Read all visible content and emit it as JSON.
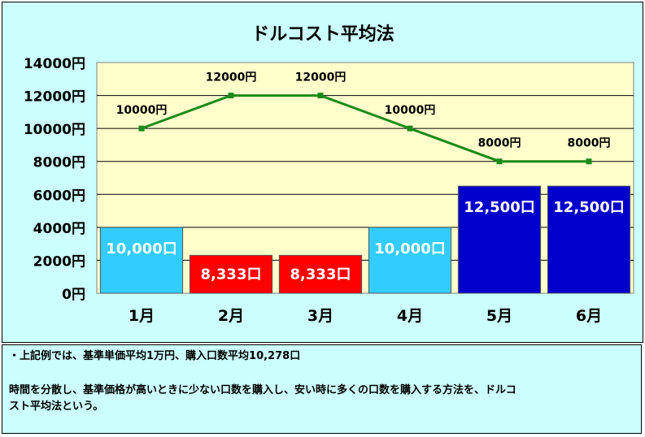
{
  "chart_data": {
    "type": "bar+line",
    "title": "ドルコスト平均法",
    "categories": [
      "1月",
      "2月",
      "3月",
      "4月",
      "5月",
      "6月"
    ],
    "ylim": [
      0,
      14000
    ],
    "y_ticks": [
      "0円",
      "2000円",
      "4000円",
      "6000円",
      "8000円",
      "10000円",
      "12000円",
      "14000円"
    ],
    "bars": {
      "values": [
        4000,
        2300,
        2300,
        4000,
        6500,
        6500
      ],
      "labels": [
        "10,000口",
        "8,333口",
        "8,333口",
        "10,000口",
        "12,500口",
        "12,500口"
      ],
      "colors": [
        "#33ccff",
        "#ff0000",
        "#ff0000",
        "#33ccff",
        "#0000cc",
        "#0000cc"
      ]
    },
    "line": {
      "values": [
        10000,
        12000,
        12000,
        10000,
        8000,
        8000
      ],
      "labels": [
        "10000円",
        "12000円",
        "12000円",
        "10000円",
        "8000円",
        "8000円"
      ],
      "color": "#1a8a1a"
    },
    "plot_background": "#ffffcc",
    "grid": true
  },
  "note": {
    "line1": "・上記例では、基準単価平均1万円、購入口数平均10,278口",
    "line2": "時間を分散し、基準価格が高いときに少ない口数を購入し、安い時に多くの口数を購入する方法を、ドルコ",
    "line3": "スト平均法という。"
  }
}
